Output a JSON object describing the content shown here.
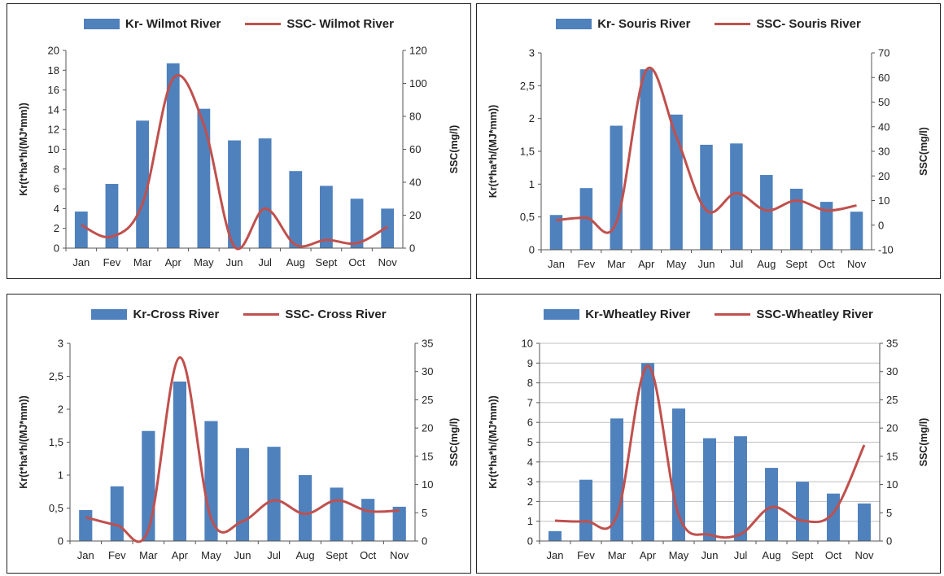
{
  "colors": {
    "bar": "#4f81bd",
    "line": "#c0504d",
    "grid": "#bfbfbf",
    "axis": "#555555"
  },
  "chart_data": [
    {
      "type": "bar",
      "legend": {
        "bar": "Kr- Wilmot River",
        "line": "SSC- Wilmot River"
      },
      "categories": [
        "Jan",
        "Fev",
        "Mar",
        "Apr",
        "May",
        "Jun",
        "Jul",
        "Aug",
        "Sept",
        "Oct",
        "Nov"
      ],
      "series": [
        {
          "name": "Kr- Wilmot River",
          "type": "bar",
          "axis": "left",
          "values": [
            3.7,
            6.5,
            12.9,
            18.7,
            14.1,
            10.9,
            11.1,
            7.8,
            6.3,
            5.0,
            4.0
          ]
        },
        {
          "name": "SSC- Wilmot River",
          "type": "line",
          "axis": "right",
          "values": [
            14,
            7,
            27,
            103,
            75,
            1,
            24,
            2,
            5,
            3,
            13
          ]
        }
      ],
      "ylabel": "Kr(t*ha*h/(MJ*mm))",
      "ylabel_right": "SSC(mg/l)",
      "ylim": [
        0,
        20
      ],
      "yticks": [
        "0",
        "2",
        "4",
        "6",
        "8",
        "10",
        "12",
        "14",
        "16",
        "18",
        "20"
      ],
      "ylim_right": [
        0,
        120
      ],
      "yticks_right": [
        "0",
        "20",
        "40",
        "60",
        "80",
        "100",
        "120"
      ],
      "grid": false
    },
    {
      "type": "bar",
      "legend": {
        "bar": "Kr- Souris River",
        "line": "SSC- Souris River"
      },
      "categories": [
        "Jan",
        "Fev",
        "Mar",
        "Apr",
        "May",
        "Jun",
        "Jul",
        "Aug",
        "Sept",
        "Oct",
        "Nov"
      ],
      "series": [
        {
          "name": "Kr- Souris River",
          "type": "bar",
          "axis": "left",
          "values": [
            0.53,
            0.94,
            1.89,
            2.75,
            2.06,
            1.6,
            1.62,
            1.14,
            0.93,
            0.73,
            0.58
          ]
        },
        {
          "name": "SSC- Souris River",
          "type": "line",
          "axis": "right",
          "values": [
            2,
            3,
            1,
            63,
            36,
            6,
            13,
            6,
            10,
            6,
            8
          ]
        }
      ],
      "ylabel": "Kr(t*ha*h/(MJ*mm))",
      "ylabel_right": "SSC(mg/l)",
      "ylim": [
        0,
        3
      ],
      "yticks": [
        "0",
        "0,5",
        "1",
        "1,5",
        "2",
        "2,5",
        "3"
      ],
      "ylim_right": [
        -10,
        70
      ],
      "yticks_right": [
        "-10",
        "0",
        "10",
        "20",
        "30",
        "40",
        "50",
        "60",
        "70"
      ],
      "grid": false
    },
    {
      "type": "bar",
      "legend": {
        "bar": "Kr-Cross River",
        "line": "SSC- Cross River"
      },
      "categories": [
        "Jan",
        "Fev",
        "Mar",
        "Apr",
        "May",
        "Jun",
        "Jul",
        "Aug",
        "Sept",
        "Oct",
        "Nov"
      ],
      "series": [
        {
          "name": "Kr-Cross River",
          "type": "bar",
          "axis": "left",
          "values": [
            0.47,
            0.83,
            1.67,
            2.42,
            1.82,
            1.41,
            1.43,
            1.0,
            0.81,
            0.64,
            0.52
          ]
        },
        {
          "name": "SSC- Cross River",
          "type": "line",
          "axis": "right",
          "values": [
            4.2,
            2.8,
            2.0,
            32.5,
            4.0,
            3.5,
            7.2,
            4.8,
            7.2,
            5.3,
            5.4
          ]
        }
      ],
      "ylabel": "Kr(t*ha*h/(MJ*mm))",
      "ylabel_right": "SSC(mg/l)",
      "ylim": [
        0,
        3
      ],
      "yticks": [
        "0",
        "0,5",
        "1",
        "1,5",
        "2",
        "2,5",
        "3"
      ],
      "ylim_right": [
        0,
        35
      ],
      "yticks_right": [
        "0",
        "5",
        "10",
        "15",
        "20",
        "25",
        "30",
        "35"
      ],
      "grid": false
    },
    {
      "type": "bar",
      "legend": {
        "bar": "Kr-Wheatley River",
        "line": "SSC-Wheatley River"
      },
      "categories": [
        "Jan",
        "Fev",
        "Mar",
        "Apr",
        "May",
        "Jun",
        "Jul",
        "Aug",
        "Sept",
        "Oct",
        "Nov"
      ],
      "series": [
        {
          "name": "Kr-Wheatley River",
          "type": "bar",
          "axis": "left",
          "values": [
            0.5,
            3.1,
            6.2,
            9.0,
            6.7,
            5.2,
            5.3,
            3.7,
            3.0,
            2.4,
            1.9
          ]
        },
        {
          "name": "SSC-Wheatley River",
          "type": "line",
          "axis": "right",
          "values": [
            3.6,
            3.5,
            4.5,
            31.0,
            4.6,
            1.1,
            1.2,
            6.0,
            3.6,
            5.0,
            17.0
          ]
        }
      ],
      "ylabel": "Kr(t*ha*h/(MJ*mm))",
      "ylabel_right": "SSC(mg/l)",
      "ylim": [
        0,
        10
      ],
      "yticks": [
        "0",
        "1",
        "2",
        "3",
        "4",
        "5",
        "6",
        "7",
        "8",
        "9",
        "10"
      ],
      "ylim_right": [
        0,
        35
      ],
      "yticks_right": [
        "0",
        "5",
        "10",
        "15",
        "20",
        "25",
        "30",
        "35"
      ],
      "grid": true
    }
  ]
}
